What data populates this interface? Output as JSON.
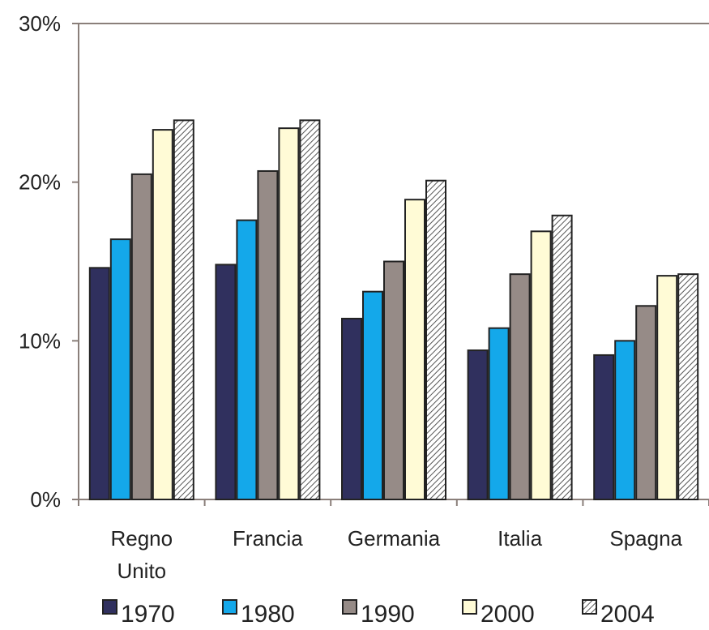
{
  "chart_data": {
    "type": "bar",
    "categories": [
      [
        "Regno",
        "Unito"
      ],
      [
        "Francia"
      ],
      [
        "Germania"
      ],
      [
        "Italia"
      ],
      [
        "Spagna"
      ]
    ],
    "series": [
      {
        "name": "1970",
        "values": [
          14.6,
          14.8,
          11.4,
          9.4,
          9.1
        ],
        "color": "#30305e",
        "pattern": "solid"
      },
      {
        "name": "1980",
        "values": [
          16.4,
          17.6,
          13.1,
          10.8,
          10.0
        ],
        "color": "#14a8ea",
        "pattern": "solid"
      },
      {
        "name": "1990",
        "values": [
          20.5,
          20.7,
          15.0,
          14.2,
          12.2
        ],
        "color": "#968b87",
        "pattern": "solid"
      },
      {
        "name": "2000",
        "values": [
          23.3,
          23.4,
          18.9,
          16.9,
          14.1
        ],
        "color": "#fffbd6",
        "pattern": "solid"
      },
      {
        "name": "2004",
        "values": [
          23.9,
          23.9,
          20.1,
          17.9,
          14.2
        ],
        "color": "#ffffff",
        "pattern": "hatched"
      }
    ],
    "ylim": [
      0,
      30
    ],
    "yticks": [
      "0%",
      "10%",
      "20%",
      "30%"
    ],
    "ytick_values": [
      0,
      10,
      20,
      30
    ],
    "grid": false,
    "legend_position": "bottom"
  }
}
